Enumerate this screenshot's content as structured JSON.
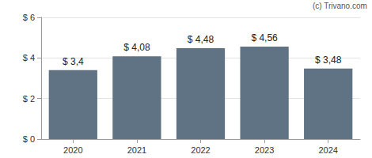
{
  "chart_data": {
    "type": "bar",
    "annotations": [
      "(c) Trivano.com"
    ],
    "categories": [
      "2020",
      "2021",
      "2022",
      "2023",
      "2024"
    ],
    "values": [
      3.4,
      4.08,
      4.48,
      4.56,
      3.48
    ],
    "value_labels": [
      "$ 3,4",
      "$ 4,08",
      "$ 4,48",
      "$ 4,56",
      "$ 3,48"
    ],
    "color": "#5f7384",
    "ylim": [
      0,
      6
    ],
    "yticks": [
      {
        "value": 0,
        "label": "$ 0"
      },
      {
        "value": 2,
        "label": "$ 2"
      },
      {
        "value": 4,
        "label": "$ 4"
      },
      {
        "value": 6,
        "label": "$ 6"
      }
    ],
    "grid": true,
    "data_labels": true
  }
}
